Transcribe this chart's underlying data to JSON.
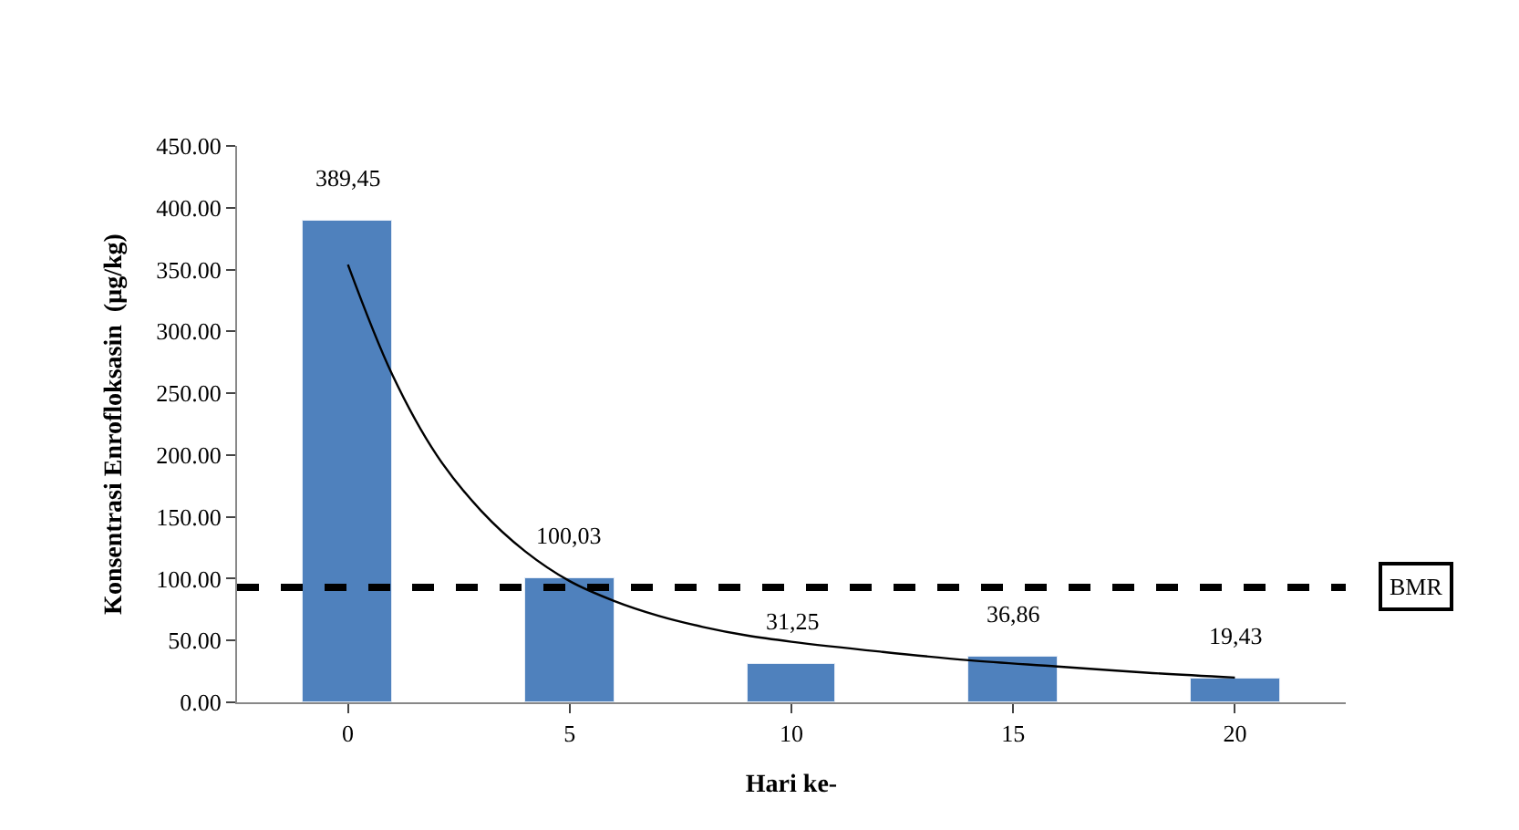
{
  "chart_data": {
    "type": "bar",
    "xlabel": "Hari ke-",
    "ylabel": "Konsentrasi Enrofloksasin  (µg/kg)",
    "x": [
      0,
      5,
      10,
      15,
      20
    ],
    "xlim": [
      -2.5,
      22.5
    ],
    "xticks": [
      0,
      5,
      10,
      15,
      20
    ],
    "ylim": [
      0,
      450
    ],
    "yticks": [
      {
        "value": 0,
        "label": "0.00"
      },
      {
        "value": 50,
        "label": "50.00"
      },
      {
        "value": 100,
        "label": "100.00"
      },
      {
        "value": 150,
        "label": "150.00"
      },
      {
        "value": 200,
        "label": "200.00"
      },
      {
        "value": 250,
        "label": "250.00"
      },
      {
        "value": 300,
        "label": "300.00"
      },
      {
        "value": 350,
        "label": "350.00"
      },
      {
        "value": 400,
        "label": "400.00"
      },
      {
        "value": 450,
        "label": "450.00"
      }
    ],
    "series": [
      {
        "color": "#4f81bd",
        "values": [
          389.45,
          100.03,
          31.25,
          36.86,
          19.43
        ],
        "value_labels": [
          "389,45",
          "100,03",
          "31,25",
          "36,86",
          "19,43"
        ]
      },
      {
        "type": "line",
        "color": "#000000",
        "x": [
          0,
          1,
          2,
          3,
          4,
          5,
          6,
          7,
          8,
          9,
          10,
          12,
          14,
          16,
          18,
          20
        ],
        "values": [
          354,
          265,
          200,
          155,
          122,
          98,
          82,
          70,
          61,
          54,
          49,
          41,
          34,
          29,
          24,
          20
        ]
      }
    ],
    "ref_lines": [
      {
        "axis": "y",
        "value": 93,
        "label": "BMR",
        "color": "#000000",
        "line_style": "dashed"
      }
    ]
  }
}
